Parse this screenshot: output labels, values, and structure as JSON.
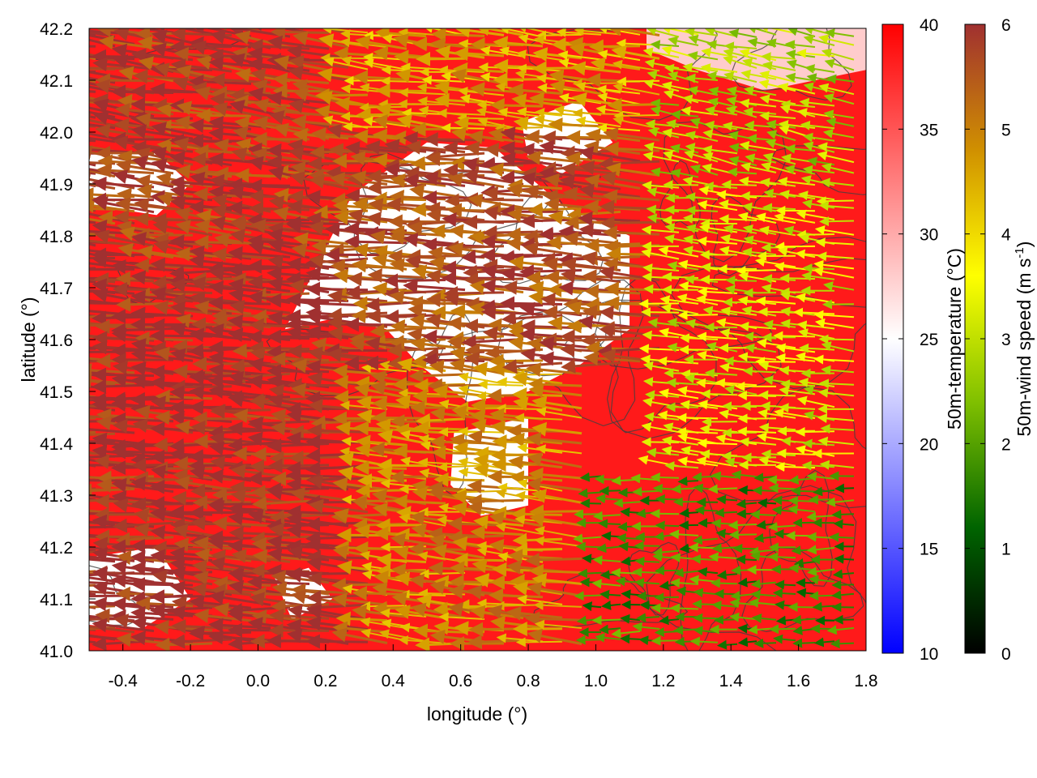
{
  "chart_data": {
    "type": "heatmap",
    "title": "",
    "xlabel": "longitude (°)",
    "ylabel": "latitude (°)",
    "xlim": [
      -0.5,
      1.8
    ],
    "ylim": [
      41.0,
      42.2
    ],
    "x_ticks": [
      -0.4,
      -0.2,
      0.0,
      0.2,
      0.4,
      0.6,
      0.8,
      1.0,
      1.2,
      1.4,
      1.6,
      1.8
    ],
    "x_tick_labels": [
      "-0.4",
      "-0.2",
      "0.0",
      "0.2",
      "0.4",
      "0.6",
      "0.8",
      "1.0",
      "1.2",
      "1.4",
      "1.6",
      "1.8"
    ],
    "y_ticks": [
      41.0,
      41.1,
      41.2,
      41.3,
      41.4,
      41.5,
      41.6,
      41.7,
      41.8,
      41.9,
      42.0,
      42.1,
      42.2
    ],
    "y_tick_labels": [
      "41.0",
      "41.1",
      "41.2",
      "41.3",
      "41.4",
      "41.5",
      "41.6",
      "41.7",
      "41.8",
      "41.9",
      "42.0",
      "42.1",
      "42.2"
    ],
    "grid": false,
    "colorbars": [
      {
        "label": "50m-temperature (°C)",
        "range": [
          10,
          40
        ],
        "ticks": [
          10,
          15,
          20,
          25,
          30,
          35,
          40
        ],
        "tick_labels": [
          "10",
          "15",
          "20",
          "25",
          "30",
          "35",
          "40"
        ],
        "colors": [
          "#0000ff",
          "#ffffff",
          "#ff0000"
        ]
      },
      {
        "label_main": "50m-wind speed (m s",
        "label_sup": "-1",
        "label_end": ")",
        "range": [
          0,
          6
        ],
        "ticks": [
          0,
          1,
          2,
          3,
          4,
          5,
          6
        ],
        "tick_labels": [
          "0",
          "1",
          "2",
          "3",
          "4",
          "5",
          "6"
        ],
        "colors": [
          "#000000",
          "#006400",
          "#80c000",
          "#ffff00",
          "#d09000",
          "#a03030"
        ]
      }
    ],
    "temperature_regions": [
      {
        "value": 25,
        "polygon": [
          [
            0.08,
            41.62
          ],
          [
            0.28,
            41.88
          ],
          [
            0.5,
            41.98
          ],
          [
            0.7,
            41.97
          ],
          [
            0.9,
            41.86
          ],
          [
            1.1,
            41.8
          ],
          [
            1.1,
            41.62
          ],
          [
            0.95,
            41.55
          ],
          [
            0.8,
            41.5
          ],
          [
            0.62,
            41.48
          ],
          [
            0.48,
            41.55
          ],
          [
            0.38,
            41.62
          ],
          [
            0.22,
            41.64
          ]
        ]
      },
      {
        "value": 25,
        "polygon": [
          [
            0.58,
            41.42
          ],
          [
            0.8,
            41.45
          ],
          [
            0.8,
            41.28
          ],
          [
            0.66,
            41.26
          ],
          [
            0.57,
            41.32
          ]
        ]
      },
      {
        "value": 25,
        "polygon": [
          [
            -0.5,
            41.96
          ],
          [
            -0.3,
            41.96
          ],
          [
            -0.2,
            41.9
          ],
          [
            -0.3,
            41.84
          ],
          [
            -0.5,
            41.86
          ]
        ]
      },
      {
        "value": 25,
        "polygon": [
          [
            0.78,
            42.02
          ],
          [
            0.95,
            42.06
          ],
          [
            1.05,
            41.98
          ],
          [
            0.9,
            41.92
          ],
          [
            0.8,
            41.95
          ]
        ]
      },
      {
        "value": 25,
        "polygon": [
          [
            -0.5,
            41.18
          ],
          [
            -0.3,
            41.2
          ],
          [
            -0.2,
            41.1
          ],
          [
            -0.35,
            41.04
          ],
          [
            -0.5,
            41.05
          ]
        ]
      },
      {
        "value": 25,
        "polygon": [
          [
            0.05,
            41.14
          ],
          [
            0.15,
            41.16
          ],
          [
            0.22,
            41.1
          ],
          [
            0.1,
            41.06
          ]
        ]
      },
      {
        "value": 28,
        "polygon": [
          [
            1.15,
            42.2
          ],
          [
            1.8,
            42.2
          ],
          [
            1.8,
            42.12
          ],
          [
            1.5,
            42.08
          ],
          [
            1.3,
            42.12
          ],
          [
            1.15,
            42.16
          ]
        ]
      }
    ],
    "wind_speed_range": [
      0,
      6
    ],
    "wind_regions": [
      {
        "x": [
          -0.5,
          0.35
        ],
        "y": [
          41.0,
          41.75
        ],
        "speed": 6,
        "dir": [
          -1,
          0.06
        ]
      },
      {
        "x": [
          -0.5,
          0.3
        ],
        "y": [
          41.75,
          42.2
        ],
        "speed": 5.8,
        "dir": [
          -1,
          0.12
        ]
      },
      {
        "x": [
          0.3,
          1.2
        ],
        "y": [
          41.55,
          42.0
        ],
        "speed": 5.6,
        "dir": [
          -1,
          0.05
        ]
      },
      {
        "x": [
          0.3,
          1.2
        ],
        "y": [
          42.0,
          42.2
        ],
        "speed": 4.5,
        "dir": [
          -1,
          0.1
        ]
      },
      {
        "x": [
          0.35,
          1.0
        ],
        "y": [
          41.0,
          41.55
        ],
        "speed": 4.8,
        "dir": [
          -1,
          0.08
        ]
      },
      {
        "x": [
          1.0,
          1.8
        ],
        "y": [
          41.0,
          41.35
        ],
        "speed": 1.8,
        "dir": [
          -1,
          0.0
        ]
      },
      {
        "x": [
          1.2,
          1.8
        ],
        "y": [
          41.35,
          41.9
        ],
        "speed": 3.2,
        "dir": [
          -1,
          0.1
        ]
      },
      {
        "x": [
          1.2,
          1.8
        ],
        "y": [
          41.9,
          42.2
        ],
        "speed": 2.8,
        "dir": [
          -1,
          0.2
        ]
      }
    ]
  }
}
